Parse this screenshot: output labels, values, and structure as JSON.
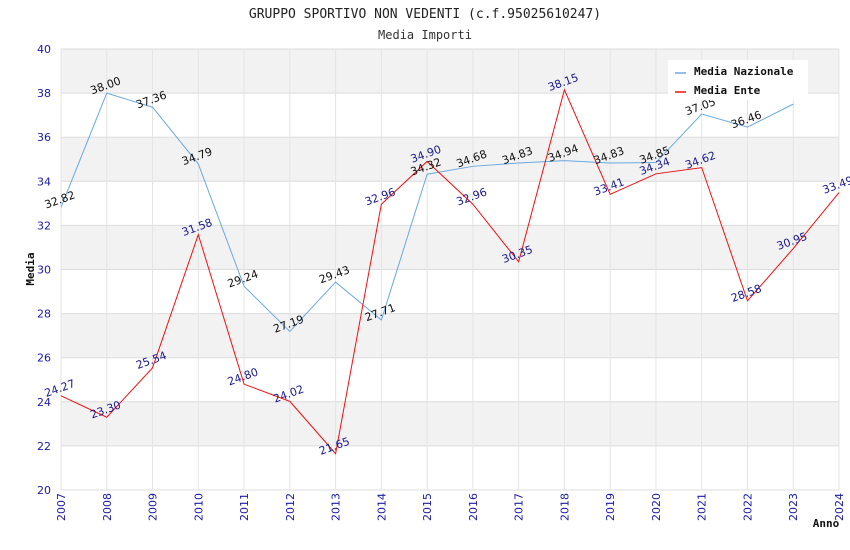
{
  "chart_data": {
    "type": "line",
    "title": "GRUPPO SPORTIVO NON VEDENTI (c.f.95025610247)",
    "subtitle": "Media Importi",
    "xlabel": "Anno",
    "ylabel": "Media",
    "ylim": [
      20,
      40
    ],
    "yticks": [
      "20",
      "22",
      "24",
      "26",
      "28",
      "30",
      "32",
      "34",
      "36",
      "38",
      "40"
    ],
    "categories": [
      "2007",
      "2008",
      "2009",
      "2010",
      "2011",
      "2012",
      "2013",
      "2014",
      "2015",
      "2016",
      "2017",
      "2018",
      "2019",
      "2020",
      "2021",
      "2022",
      "2023",
      "2024"
    ],
    "grid": true,
    "legend_position": "top-right",
    "colors": {
      "nazionale": "#6aa8e0",
      "ente": "#ee1111",
      "band": "#f2f2f2",
      "tick": "#1a1aa6"
    },
    "series": [
      {
        "name": "Media Nazionale",
        "values": [
          32.82,
          38.0,
          37.36,
          34.79,
          29.24,
          27.19,
          29.43,
          27.71,
          34.32,
          34.68,
          34.83,
          34.94,
          34.83,
          34.85,
          37.05,
          36.46,
          37.5,
          null
        ],
        "labels": [
          "32.82",
          "38.00",
          "37.36",
          "34.79",
          "29.24",
          "27.19",
          "29.43",
          "27.71",
          "34.32",
          "34.68",
          "34.83",
          "34.94",
          "34.83",
          "34.85",
          "37.05",
          "36.46",
          "",
          ""
        ]
      },
      {
        "name": "Media Ente",
        "values": [
          24.27,
          23.3,
          25.54,
          31.58,
          24.8,
          24.02,
          21.65,
          32.96,
          34.9,
          32.96,
          30.35,
          38.15,
          33.41,
          34.34,
          34.62,
          28.58,
          30.95,
          33.49
        ],
        "labels": [
          "24.27",
          "23.30",
          "25.54",
          "31.58",
          "24.80",
          "24.02",
          "21.65",
          "32.96",
          "34.90",
          "32.96",
          "30.35",
          "38.15",
          "33.41",
          "34.34",
          "34.62",
          "28.58",
          "30.95",
          "33.49"
        ]
      }
    ]
  }
}
